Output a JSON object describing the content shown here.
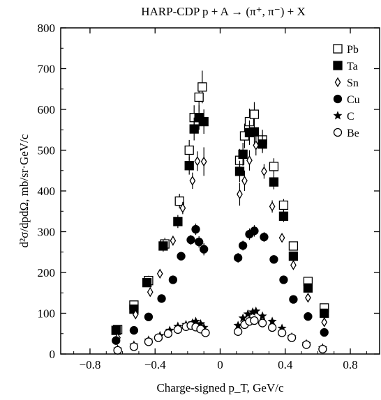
{
  "chart_data": {
    "type": "scatter",
    "title": "HARP-CDP  p + A → (π⁺, π⁻) + X",
    "xlabel": "Charge-signed p_T, GeV/c",
    "ylabel": "d²σ/dpdΩ, mb/sr·GeV/c",
    "xlim": [
      -0.98,
      0.98
    ],
    "ylim": [
      0,
      800
    ],
    "x_ticks": [
      -0.8,
      -0.4,
      0,
      0.4,
      0.8
    ],
    "x_tick_labels": [
      "−0.8",
      "−0.4",
      "0",
      "0.4",
      "0.8"
    ],
    "y_ticks": [
      0,
      100,
      200,
      300,
      400,
      500,
      600,
      700,
      800
    ],
    "y_tick_labels": [
      "0",
      "100",
      "200",
      "300",
      "400",
      "500",
      "600",
      "700",
      "800"
    ],
    "grid": false,
    "legend_position": "top-right",
    "series": [
      {
        "name": "Pb",
        "marker": "open-square",
        "x": [
          -0.63,
          -0.53,
          -0.44,
          -0.34,
          -0.25,
          -0.19,
          -0.16,
          -0.13,
          -0.11,
          0.12,
          0.15,
          0.18,
          0.21,
          0.26,
          0.33,
          0.39,
          0.45,
          0.54,
          0.64
        ],
        "y": [
          60,
          120,
          180,
          270,
          375,
          500,
          580,
          630,
          655,
          475,
          535,
          570,
          588,
          525,
          460,
          365,
          265,
          178,
          113
        ],
        "yerr": [
          5,
          8,
          12,
          15,
          18,
          25,
          30,
          35,
          40,
          28,
          30,
          32,
          30,
          25,
          20,
          15,
          10,
          8,
          5
        ]
      },
      {
        "name": "Ta",
        "marker": "filled-square",
        "x": [
          -0.64,
          -0.53,
          -0.45,
          -0.35,
          -0.26,
          -0.19,
          -0.16,
          -0.13,
          -0.1,
          0.12,
          0.14,
          0.18,
          0.21,
          0.26,
          0.33,
          0.39,
          0.45,
          0.54,
          0.64
        ],
        "y": [
          58,
          110,
          175,
          265,
          325,
          462,
          552,
          580,
          570,
          448,
          490,
          543,
          545,
          515,
          422,
          338,
          240,
          162,
          100
        ],
        "yerr": [
          5,
          7,
          10,
          14,
          16,
          22,
          28,
          30,
          30,
          26,
          28,
          30,
          28,
          22,
          18,
          14,
          10,
          7,
          5
        ]
      },
      {
        "name": "Sn",
        "marker": "open-diamond",
        "x": [
          -0.63,
          -0.52,
          -0.43,
          -0.37,
          -0.29,
          -0.23,
          -0.17,
          -0.14,
          -0.1,
          0.12,
          0.15,
          0.18,
          0.22,
          0.27,
          0.32,
          0.38,
          0.45,
          0.54,
          0.64
        ],
        "y": [
          40,
          97,
          152,
          197,
          278,
          358,
          425,
          473,
          472,
          392,
          425,
          475,
          512,
          448,
          362,
          285,
          218,
          138,
          78
        ],
        "yerr": [
          4,
          6,
          8,
          10,
          12,
          15,
          20,
          24,
          35,
          28,
          25,
          25,
          25,
          18,
          15,
          10,
          8,
          6,
          5
        ]
      },
      {
        "name": "Cu",
        "marker": "filled-circle",
        "x": [
          -0.64,
          -0.53,
          -0.44,
          -0.36,
          -0.29,
          -0.24,
          -0.18,
          -0.15,
          -0.13,
          -0.1,
          0.11,
          0.14,
          0.18,
          0.21,
          0.27,
          0.33,
          0.39,
          0.45,
          0.54,
          0.64
        ],
        "y": [
          33,
          58,
          91,
          136,
          182,
          240,
          280,
          306,
          275,
          257,
          236,
          266,
          294,
          302,
          287,
          232,
          182,
          134,
          92,
          53
        ],
        "yerr": [
          3,
          4,
          5,
          6,
          8,
          10,
          12,
          14,
          14,
          15,
          12,
          12,
          14,
          14,
          12,
          10,
          8,
          6,
          5,
          4
        ]
      },
      {
        "name": "C",
        "marker": "star",
        "x": [
          -0.63,
          -0.53,
          -0.44,
          -0.37,
          -0.31,
          -0.26,
          -0.21,
          -0.17,
          -0.15,
          -0.12,
          -0.1,
          0.11,
          0.14,
          0.17,
          0.2,
          0.22,
          0.26,
          0.32,
          0.38,
          0.44,
          0.53,
          0.63
        ],
        "y": [
          12,
          22,
          34,
          45,
          58,
          68,
          72,
          76,
          80,
          74,
          65,
          70,
          88,
          98,
          103,
          105,
          93,
          80,
          63,
          42,
          25,
          15
        ],
        "yerr": [
          2,
          2,
          3,
          3,
          4,
          4,
          5,
          5,
          5,
          5,
          5,
          5,
          5,
          6,
          6,
          6,
          5,
          5,
          4,
          3,
          2,
          2
        ]
      },
      {
        "name": "Be",
        "marker": "open-circle",
        "x": [
          -0.63,
          -0.53,
          -0.44,
          -0.38,
          -0.32,
          -0.26,
          -0.21,
          -0.18,
          -0.15,
          -0.12,
          -0.09,
          0.11,
          0.15,
          0.18,
          0.21,
          0.26,
          0.32,
          0.38,
          0.44,
          0.53,
          0.63
        ],
        "y": [
          9,
          18,
          30,
          40,
          50,
          60,
          67,
          70,
          66,
          61,
          52,
          55,
          72,
          80,
          82,
          76,
          65,
          52,
          40,
          23,
          12
        ],
        "yerr": [
          2,
          2,
          3,
          3,
          3,
          4,
          4,
          4,
          4,
          4,
          4,
          4,
          4,
          5,
          5,
          4,
          4,
          3,
          3,
          2,
          2
        ]
      }
    ]
  }
}
